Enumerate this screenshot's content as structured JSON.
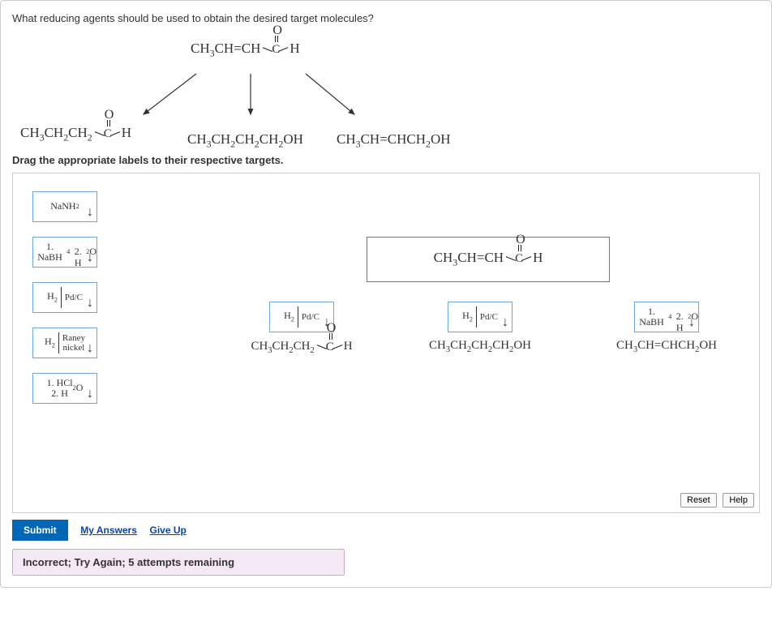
{
  "question": "What reducing agents should be used to obtain the desired target molecules?",
  "instruction": "Drag the appropriate labels to their respective targets.",
  "starting_material_html": "CH<sub>3</sub>CH=CH",
  "product_a_html": "CH<sub>3</sub>CH<sub>2</sub>CH<sub>2</sub>",
  "product_b_html": "CH<sub>3</sub>CH<sub>2</sub>CH<sub>2</sub>CH<sub>2</sub>OH",
  "product_c_html": "CH<sub>3</sub>CH=CHCH<sub>2</sub>OH",
  "palette_tiles": [
    {
      "kind": "single",
      "text": "NaNH<sub>2</sub>"
    },
    {
      "kind": "seq",
      "text": "1. NaBH<sub>4</sub><br>2. H<sub>2</sub>O"
    },
    {
      "kind": "split",
      "left": "H<sub>2</sub>",
      "right": "Pd/C"
    },
    {
      "kind": "split",
      "left": "H<sub>2</sub>",
      "right": "Raney<br>nickel"
    },
    {
      "kind": "seq",
      "text": "1. HCl<br>2. H<sub>2</sub>O"
    }
  ],
  "placed": {
    "a": {
      "kind": "split",
      "left": "H<sub>2</sub>",
      "right": "Pd/C"
    },
    "b": {
      "kind": "split",
      "left": "H<sub>2</sub>",
      "right": "Pd/C"
    },
    "c": {
      "kind": "seq",
      "text": "1. NaBH<sub>4</sub><br>2. H<sub>2</sub>O"
    }
  },
  "buttons": {
    "reset": "Reset",
    "help": "Help",
    "submit": "Submit",
    "myanswers": "My Answers",
    "giveup": "Give Up"
  },
  "feedback": "Incorrect; Try Again; 5 attempts remaining",
  "colors": {
    "tile_border": "#6fa8d8",
    "submit_bg": "#0066b6",
    "feedback_bg": "#f6e9f6",
    "feedback_border": "#c9a9c9",
    "link": "#0645ad"
  }
}
